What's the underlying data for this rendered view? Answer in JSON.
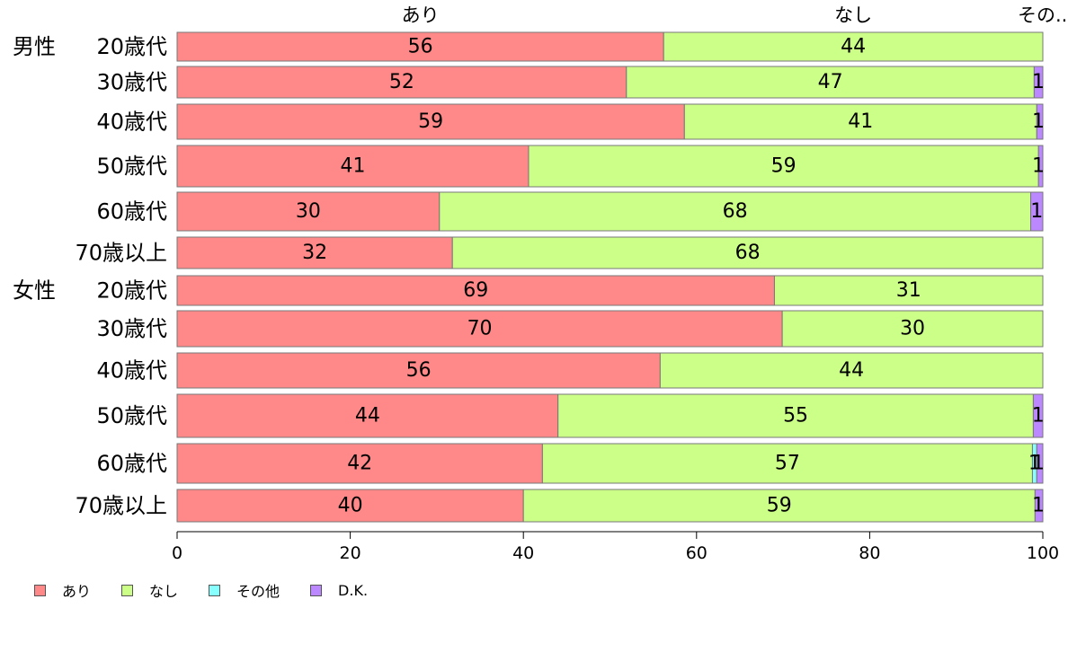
{
  "chart_data": {
    "type": "bar",
    "orientation": "horizontal",
    "stacked": true,
    "title": "",
    "xlabel": "",
    "ylabel": "",
    "xlim": [
      0,
      100
    ],
    "x_ticks": [
      "0",
      "20",
      "40",
      "60",
      "80",
      "100"
    ],
    "grid": false,
    "legend_position": "bottom-left",
    "top_labels": [
      "あり",
      "なし",
      "その..."
    ],
    "groups": [
      {
        "label": "男性",
        "rows": [
          "20歳代",
          "30歳代",
          "40歳代",
          "50歳代",
          "60歳代",
          "70歳以上"
        ]
      },
      {
        "label": "女性",
        "rows": [
          "20歳代",
          "30歳代",
          "40歳代",
          "50歳代",
          "60歳代",
          "70歳以上"
        ]
      }
    ],
    "series": [
      {
        "name": "あり",
        "color": "#ff8888",
        "values": [
          56.2,
          51.9,
          58.6,
          40.6,
          30.3,
          31.8,
          69.0,
          69.9,
          55.8,
          44.0,
          42.2,
          40.0
        ],
        "labels": [
          "56",
          "52",
          "59",
          "41",
          "30",
          "32",
          "69",
          "70",
          "56",
          "44",
          "42",
          "40"
        ]
      },
      {
        "name": "なし",
        "color": "#ccff88",
        "values": [
          43.8,
          47.1,
          40.7,
          58.9,
          68.3,
          68.2,
          31.0,
          30.1,
          44.2,
          54.9,
          56.6,
          59.1
        ],
        "labels": [
          "44",
          "47",
          "41",
          "59",
          "68",
          "68",
          "31",
          "30",
          "44",
          "55",
          "57",
          "59"
        ]
      },
      {
        "name": "その他",
        "color": "#88ffff",
        "values": [
          0,
          0,
          0,
          0,
          0,
          0,
          0,
          0,
          0,
          0,
          0.5,
          0
        ],
        "labels": [
          "",
          "",
          "",
          "",
          "",
          "",
          "",
          "",
          "",
          "",
          "1",
          ""
        ]
      },
      {
        "name": "D.K.",
        "color": "#bb88ff",
        "values": [
          0,
          1.0,
          0.7,
          0.5,
          1.4,
          0,
          0,
          0,
          0,
          1.1,
          0.7,
          0.9
        ],
        "labels": [
          "",
          "1",
          "1",
          "1",
          "1",
          "",
          "",
          "",
          "",
          "1",
          "1",
          "1"
        ]
      }
    ]
  }
}
